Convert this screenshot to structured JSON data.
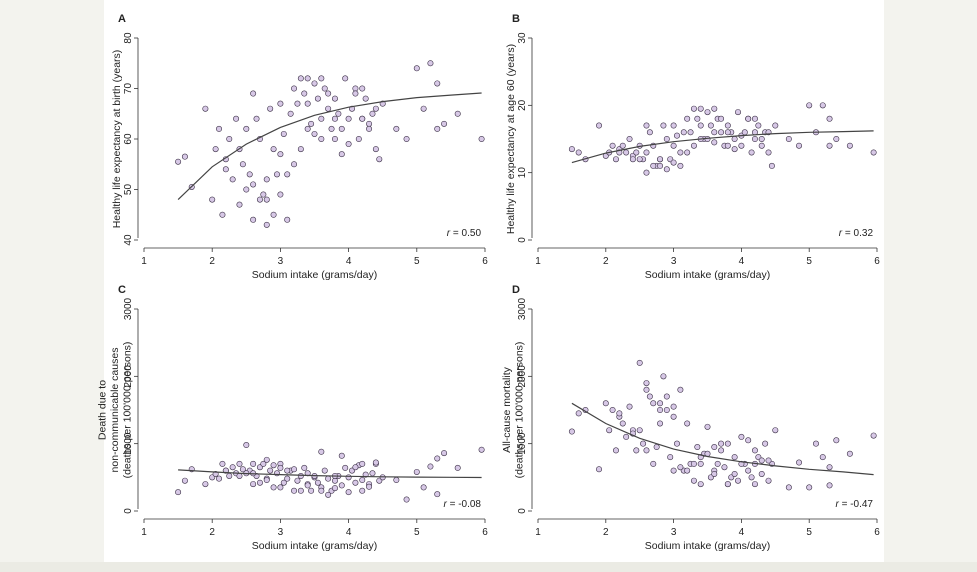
{
  "figure": {
    "background": "#ffffff",
    "page_background": "#f3f3ee",
    "point_fill": "#d7c8e6",
    "point_stroke": "#3a2f45",
    "fit_color": "#444444"
  },
  "chart_data": [
    {
      "type": "scatter",
      "panel": "A",
      "xlabel": "Sodium intake (grams/day)",
      "ylabel": "Healthy life expectancy at birth (years)",
      "ylabel_lines": [
        "Healthy life expectancy at birth (years)"
      ],
      "xlim": [
        1,
        6
      ],
      "ylim": [
        40,
        80
      ],
      "xticks": [
        1,
        2,
        3,
        4,
        5,
        6
      ],
      "yticks": [
        40,
        50,
        60,
        70,
        80
      ],
      "r_label": "r",
      "r_value": "= 0.50",
      "fit": {
        "x": [
          1.5,
          2,
          2.5,
          3,
          3.5,
          4,
          4.5,
          5,
          5.5,
          5.95
        ],
        "y": [
          48,
          54.5,
          59,
          62.3,
          64.7,
          66.3,
          67.4,
          68.2,
          68.7,
          69.1
        ]
      },
      "points": {
        "x": [
          1.5,
          1.6,
          1.7,
          1.9,
          2.0,
          2.05,
          2.1,
          2.15,
          2.2,
          2.25,
          2.3,
          2.35,
          2.4,
          2.45,
          2.5,
          2.55,
          2.6,
          2.65,
          2.7,
          2.75,
          2.8,
          2.85,
          2.9,
          2.95,
          3.0,
          3.05,
          3.1,
          3.15,
          3.2,
          3.25,
          3.3,
          3.35,
          3.4,
          3.45,
          3.5,
          3.55,
          3.6,
          3.65,
          3.7,
          3.75,
          3.8,
          3.85,
          3.9,
          3.95,
          4.0,
          4.05,
          4.1,
          4.15,
          4.2,
          4.25,
          4.3,
          4.35,
          4.4,
          4.45,
          4.5,
          4.7,
          4.85,
          5.0,
          5.1,
          5.2,
          5.3,
          5.4,
          5.6,
          5.95,
          2.4,
          2.6,
          2.8,
          3.0,
          3.2,
          3.4,
          3.6,
          3.8,
          4.0,
          4.2,
          2.5,
          2.7,
          2.9,
          3.1,
          3.3,
          3.5,
          3.7,
          3.9,
          4.1,
          4.3,
          2.2,
          2.6,
          3.0,
          3.4,
          3.8,
          4.2,
          2.8,
          3.6,
          4.4,
          5.3
        ],
        "y": [
          55.5,
          56.5,
          50.5,
          66,
          48,
          58,
          62,
          45,
          56,
          60,
          52,
          64,
          58,
          55,
          62,
          53,
          69,
          64,
          60,
          49,
          52,
          66,
          58,
          53,
          67,
          61,
          44,
          65,
          70,
          67,
          72,
          69,
          72,
          63,
          71,
          68,
          72,
          70,
          66,
          62,
          68,
          65,
          62,
          72,
          64,
          66,
          70,
          60,
          64,
          68,
          63,
          65,
          58,
          56,
          67,
          62,
          60,
          74,
          66,
          75,
          71,
          63,
          65,
          60,
          47,
          51,
          43,
          57,
          55,
          62,
          64,
          60,
          59,
          70,
          50,
          48,
          45,
          53,
          58,
          61,
          69,
          57,
          69,
          62,
          54,
          44,
          49,
          67,
          64,
          64,
          48,
          60,
          66,
          62
        ]
      }
    },
    {
      "type": "scatter",
      "panel": "B",
      "xlabel": "Sodium intake (grams/day)",
      "ylabel": "Healthy life expectancy at age 60 (years)",
      "ylabel_lines": [
        "Healthy life expectancy at age 60 (years)"
      ],
      "xlim": [
        1,
        6
      ],
      "ylim": [
        0,
        30
      ],
      "xticks": [
        1,
        2,
        3,
        4,
        5,
        6
      ],
      "yticks": [
        0,
        10,
        20,
        30
      ],
      "r_label": "r",
      "r_value": "= 0.32",
      "fit": {
        "x": [
          1.5,
          2,
          2.5,
          3,
          3.5,
          4,
          4.5,
          5,
          5.5,
          5.95
        ],
        "y": [
          11.5,
          12.9,
          13.9,
          14.6,
          15.1,
          15.5,
          15.8,
          16.0,
          16.1,
          16.2
        ]
      },
      "points": {
        "x": [
          1.5,
          1.6,
          1.7,
          1.9,
          2.0,
          2.05,
          2.1,
          2.15,
          2.2,
          2.25,
          2.3,
          2.35,
          2.4,
          2.45,
          2.5,
          2.55,
          2.6,
          2.65,
          2.7,
          2.75,
          2.8,
          2.85,
          2.9,
          2.95,
          3.0,
          3.05,
          3.1,
          3.15,
          3.2,
          3.25,
          3.3,
          3.35,
          3.4,
          3.45,
          3.5,
          3.55,
          3.6,
          3.65,
          3.7,
          3.75,
          3.8,
          3.85,
          3.9,
          3.95,
          4.0,
          4.05,
          4.1,
          4.15,
          4.2,
          4.25,
          4.3,
          4.35,
          4.4,
          4.45,
          4.5,
          4.7,
          4.85,
          5.0,
          5.1,
          5.2,
          5.3,
          5.4,
          5.6,
          5.95,
          2.4,
          2.6,
          2.8,
          3.0,
          3.2,
          3.4,
          3.6,
          3.8,
          4.0,
          4.2,
          2.5,
          2.7,
          2.9,
          3.1,
          3.3,
          3.5,
          3.7,
          3.9,
          4.1,
          4.3,
          2.2,
          2.6,
          3.0,
          3.4,
          3.8,
          4.2,
          2.8,
          3.6,
          4.4,
          5.3
        ],
        "y": [
          13.5,
          13,
          12,
          17,
          12.5,
          13,
          14,
          12,
          13.5,
          14,
          13,
          15,
          12.5,
          13,
          14,
          12,
          17,
          16,
          14,
          11,
          12,
          17,
          15,
          12,
          17,
          15.5,
          11,
          16,
          18,
          16,
          19.5,
          18,
          19.5,
          15,
          19,
          17,
          19.5,
          18,
          16,
          14,
          17,
          16,
          15,
          19,
          15.5,
          16,
          18,
          13,
          15,
          17,
          14,
          16,
          13,
          11,
          17,
          15,
          14,
          20,
          16,
          20,
          18,
          15,
          14,
          13,
          12,
          13,
          11,
          14,
          13,
          15,
          16,
          14,
          14,
          18,
          12,
          11,
          10.5,
          13,
          14,
          15,
          18,
          13.5,
          18,
          15,
          13,
          10,
          11.5,
          17,
          16,
          16,
          12,
          14.5,
          16,
          14
        ]
      }
    },
    {
      "type": "scatter",
      "panel": "C",
      "xlabel": "Sodium intake (grams/day)",
      "ylabel": "Death due to non-communicable causes (deaths per 100'000 persons)",
      "ylabel_lines": [
        "Death due to",
        "non-communicable causes",
        "(deaths per 100'000 persons)"
      ],
      "xlim": [
        1,
        6
      ],
      "ylim": [
        0,
        3000
      ],
      "xticks": [
        1,
        2,
        3,
        4,
        5,
        6
      ],
      "yticks": [
        0,
        1000,
        2000,
        3000
      ],
      "r_label": "r",
      "r_value": "= -0.08",
      "fit": {
        "x": [
          1.5,
          2,
          2.5,
          3,
          3.5,
          4,
          4.5,
          5,
          5.5,
          5.95
        ],
        "y": [
          610,
          580,
          555,
          540,
          525,
          515,
          508,
          503,
          500,
          498
        ]
      },
      "points": {
        "x": [
          1.5,
          1.6,
          1.7,
          1.9,
          2.0,
          2.05,
          2.1,
          2.15,
          2.2,
          2.25,
          2.3,
          2.35,
          2.4,
          2.45,
          2.5,
          2.55,
          2.6,
          2.65,
          2.7,
          2.75,
          2.8,
          2.85,
          2.9,
          2.95,
          3.0,
          3.05,
          3.1,
          3.15,
          3.2,
          3.25,
          3.3,
          3.35,
          3.4,
          3.45,
          3.5,
          3.55,
          3.6,
          3.65,
          3.7,
          3.75,
          3.8,
          3.85,
          3.9,
          3.95,
          4.0,
          4.05,
          4.1,
          4.15,
          4.2,
          4.25,
          4.3,
          4.35,
          4.4,
          4.45,
          4.5,
          4.7,
          4.85,
          5.0,
          5.1,
          5.2,
          5.3,
          5.4,
          5.6,
          5.95,
          2.4,
          2.6,
          2.8,
          3.0,
          3.2,
          3.4,
          3.6,
          3.8,
          4.0,
          4.2,
          2.5,
          2.7,
          2.9,
          3.1,
          3.3,
          3.5,
          3.7,
          3.9,
          4.1,
          4.3,
          2.2,
          2.6,
          3.0,
          3.4,
          3.8,
          4.2,
          2.8,
          3.6,
          4.4,
          5.3
        ],
        "y": [
          280,
          450,
          620,
          400,
          500,
          550,
          480,
          700,
          600,
          520,
          650,
          560,
          700,
          620,
          980,
          600,
          400,
          520,
          650,
          700,
          480,
          600,
          350,
          560,
          700,
          420,
          480,
          600,
          300,
          450,
          520,
          640,
          400,
          300,
          500,
          420,
          350,
          600,
          480,
          300,
          450,
          520,
          380,
          640,
          500,
          600,
          420,
          680,
          300,
          540,
          400,
          560,
          700,
          450,
          500,
          460,
          170,
          580,
          350,
          660,
          250,
          860,
          640,
          910,
          520,
          700,
          760,
          350,
          620,
          560,
          880,
          340,
          280,
          460,
          560,
          420,
          680,
          600,
          300,
          520,
          240,
          820,
          650,
          360,
          600,
          560,
          640,
          380,
          520,
          700,
          460,
          300,
          720,
          780
        ]
      }
    },
    {
      "type": "scatter",
      "panel": "D",
      "xlabel": "Sodium intake (grams/day)",
      "ylabel": "All-cause mortality (deaths per 100'000 persons)",
      "ylabel_lines": [
        "All-cause mortality",
        "(deaths per 100'000 persons)"
      ],
      "xlim": [
        1,
        6
      ],
      "ylim": [
        0,
        3000
      ],
      "xticks": [
        1,
        2,
        3,
        4,
        5,
        6
      ],
      "yticks": [
        0,
        1000,
        2000,
        3000
      ],
      "r_label": "r",
      "r_value": "= -0.47",
      "fit": {
        "x": [
          1.5,
          2,
          2.5,
          3,
          3.5,
          4,
          4.5,
          5,
          5.5,
          5.95
        ],
        "y": [
          1600,
          1300,
          1080,
          920,
          810,
          730,
          670,
          620,
          580,
          540
        ]
      },
      "points": {
        "x": [
          1.5,
          1.6,
          1.7,
          1.9,
          2.0,
          2.05,
          2.1,
          2.15,
          2.2,
          2.25,
          2.3,
          2.35,
          2.4,
          2.45,
          2.5,
          2.55,
          2.6,
          2.65,
          2.7,
          2.75,
          2.8,
          2.85,
          2.9,
          2.95,
          3.0,
          3.05,
          3.1,
          3.15,
          3.2,
          3.25,
          3.3,
          3.35,
          3.4,
          3.45,
          3.5,
          3.55,
          3.6,
          3.65,
          3.7,
          3.75,
          3.8,
          3.85,
          3.9,
          3.95,
          4.0,
          4.05,
          4.1,
          4.15,
          4.2,
          4.25,
          4.3,
          4.35,
          4.4,
          4.45,
          4.5,
          4.7,
          4.85,
          5.0,
          5.1,
          5.2,
          5.3,
          5.4,
          5.6,
          5.95,
          2.4,
          2.6,
          2.8,
          3.0,
          3.2,
          3.4,
          3.6,
          3.8,
          4.0,
          4.2,
          2.5,
          2.7,
          2.9,
          3.1,
          3.3,
          3.5,
          3.7,
          3.9,
          4.1,
          4.3,
          2.2,
          2.6,
          3.0,
          3.4,
          3.8,
          4.2,
          2.8,
          3.6,
          4.4,
          5.3
        ],
        "y": [
          1180,
          1450,
          1500,
          620,
          1600,
          1200,
          1500,
          900,
          1400,
          1300,
          1100,
          1550,
          1200,
          900,
          2200,
          1000,
          1900,
          1700,
          700,
          950,
          1600,
          2000,
          1500,
          800,
          1550,
          1000,
          1800,
          600,
          1300,
          700,
          700,
          950,
          400,
          850,
          1250,
          500,
          600,
          700,
          1000,
          650,
          400,
          500,
          800,
          450,
          1100,
          700,
          600,
          500,
          700,
          800,
          550,
          1000,
          450,
          700,
          1200,
          350,
          720,
          350,
          1000,
          800,
          380,
          1050,
          850,
          1120,
          1150,
          1800,
          1500,
          1400,
          600,
          800,
          950,
          400,
          700,
          900,
          1200,
          1600,
          1700,
          650,
          450,
          850,
          900,
          550,
          1050,
          750,
          1450,
          900,
          600,
          700,
          1000,
          400,
          1300,
          550,
          750,
          650
        ]
      }
    }
  ]
}
